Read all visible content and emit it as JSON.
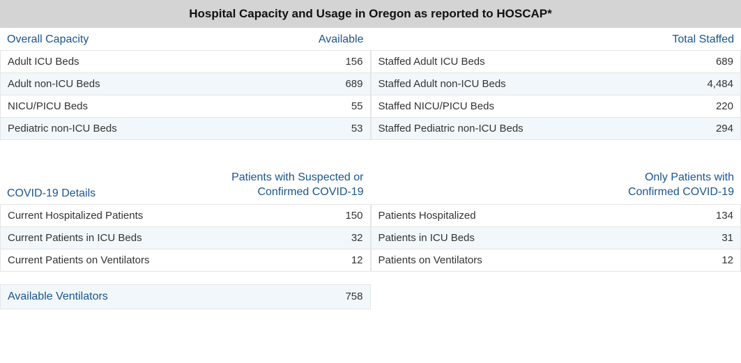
{
  "title": "Hospital Capacity and Usage in Oregon as reported to HOSCAP*",
  "colors": {
    "header_bg": "#d4d4d4",
    "link_blue": "#1a5490",
    "row_alt_bg": "#f2f7fb",
    "border": "#e5e5e5",
    "text": "#333333"
  },
  "capacity": {
    "left": {
      "header_left": "Overall Capacity",
      "header_right": "Available",
      "rows": [
        {
          "label": "Adult ICU Beds",
          "value": "156"
        },
        {
          "label": "Adult non-ICU Beds",
          "value": "689"
        },
        {
          "label": "NICU/PICU Beds",
          "value": "55"
        },
        {
          "label": "Pediatric non-ICU Beds",
          "value": "53"
        }
      ]
    },
    "right": {
      "header_right": "Total Staffed",
      "rows": [
        {
          "label": "Staffed Adult ICU Beds",
          "value": "689"
        },
        {
          "label": "Staffed Adult non-ICU Beds",
          "value": "4,484"
        },
        {
          "label": "Staffed NICU/PICU Beds",
          "value": "220"
        },
        {
          "label": "Staffed Pediatric non-ICU Beds",
          "value": "294"
        }
      ]
    }
  },
  "covid": {
    "left": {
      "header_left": "COVID-19 Details",
      "header_right": "Patients with Suspected or Confirmed COVID-19",
      "rows": [
        {
          "label": "Current Hospitalized Patients",
          "value": "150"
        },
        {
          "label": "Current Patients in ICU Beds",
          "value": "32"
        },
        {
          "label": "Current Patients on Ventilators",
          "value": "12"
        }
      ]
    },
    "right": {
      "header_right": "Only Patients with Confirmed COVID-19",
      "rows": [
        {
          "label": "Patients Hospitalized",
          "value": "134"
        },
        {
          "label": "Patients in ICU Beds",
          "value": "31"
        },
        {
          "label": "Patients on Ventilators",
          "value": "12"
        }
      ]
    }
  },
  "ventilators": {
    "label": "Available Ventilators",
    "value": "758"
  }
}
